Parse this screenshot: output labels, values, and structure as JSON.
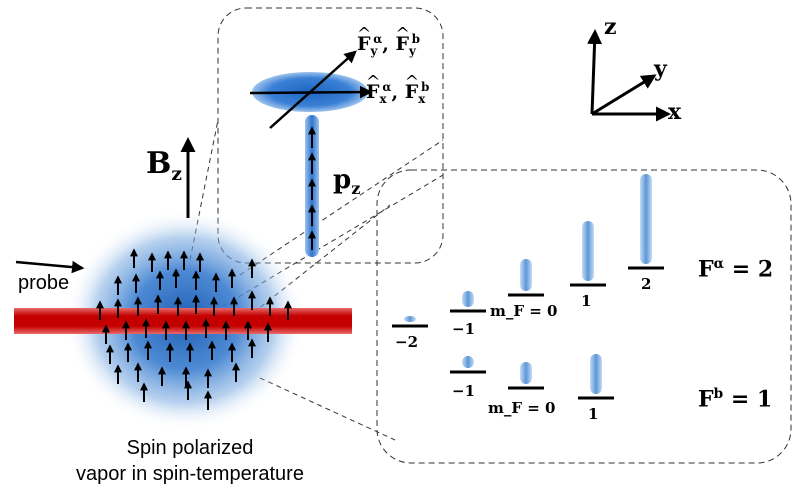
{
  "axes": {
    "z": "z",
    "y": "y",
    "x": "x"
  },
  "field": {
    "symbol": "B",
    "subscript": "z"
  },
  "probe": "probe",
  "spin": {
    "operator": "F",
    "upper_sup_a": "α",
    "upper_sup_b": "b",
    "upper_sub": "y",
    "lower_sub": "x",
    "sep": ","
  },
  "momentum": {
    "symbol": "p",
    "subscript": "z"
  },
  "caption": {
    "line1": "Spin polarized",
    "line2": "vapor in spin-temperature"
  },
  "level_labels": {
    "alpha": [
      "−2",
      "−1",
      "m_F = 0",
      "1",
      "2"
    ],
    "b": [
      "−1",
      "m_F = 0",
      "1"
    ]
  },
  "manifolds": {
    "alpha": {
      "symbol": "F",
      "sup": "α",
      "value": "= 2"
    },
    "b": {
      "symbol": "F",
      "sup": "b",
      "value": "= 1"
    }
  },
  "colors": {
    "vapor": "#2e74c8",
    "probe_beam": "#cc0000",
    "populations": "#4a8fd4"
  }
}
